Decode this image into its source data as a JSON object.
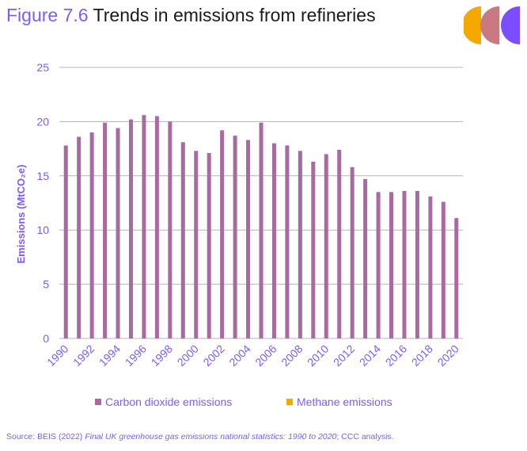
{
  "title": {
    "figure": "Figure 7.6",
    "text": "Trends in emissions from refineries"
  },
  "source": {
    "prefix": "Source: BEIS (2022) ",
    "italic": "Final UK greenhouse gas emissions national statistics: 1990 to 2020",
    "suffix": "; CCC analysis."
  },
  "logo": {
    "colors": [
      "#f5a800",
      "#c87a80",
      "#7c4dff"
    ]
  },
  "colors": {
    "bar": "#a86aa0",
    "methane": "#f5a800",
    "axis_text": "#7c5cff",
    "grid": "#b5b5b5"
  },
  "chart_data": {
    "type": "bar",
    "ylabel": "Emissions (MtCO₂e)",
    "ylim": [
      0,
      25
    ],
    "yticks": [
      0,
      5,
      10,
      15,
      20,
      25
    ],
    "grid": true,
    "legend_position": "bottom",
    "categories": [
      "1990",
      "1991",
      "1992",
      "1993",
      "1994",
      "1995",
      "1996",
      "1997",
      "1998",
      "1999",
      "2000",
      "2001",
      "2002",
      "2003",
      "2004",
      "2005",
      "2006",
      "2007",
      "2008",
      "2009",
      "2010",
      "2011",
      "2012",
      "2013",
      "2014",
      "2015",
      "2016",
      "2017",
      "2018",
      "2019",
      "2020"
    ],
    "xtick_labels": [
      "1990",
      "1992",
      "1994",
      "1996",
      "1998",
      "2000",
      "2002",
      "2004",
      "2006",
      "2008",
      "2010",
      "2012",
      "2014",
      "2016",
      "2018",
      "2020"
    ],
    "series": [
      {
        "name": "Carbon dioxide emissions",
        "values": [
          17.8,
          18.6,
          19.0,
          19.9,
          19.4,
          20.2,
          20.6,
          20.5,
          20.0,
          18.1,
          17.3,
          17.1,
          19.2,
          18.7,
          18.3,
          19.9,
          18.0,
          17.8,
          17.3,
          16.3,
          17.0,
          17.4,
          15.8,
          14.7,
          13.5,
          13.5,
          13.6,
          13.6,
          13.1,
          12.6,
          11.1
        ]
      },
      {
        "name": "Methane emissions",
        "values": [
          0,
          0,
          0,
          0,
          0,
          0,
          0,
          0,
          0,
          0,
          0,
          0,
          0,
          0,
          0,
          0,
          0,
          0,
          0,
          0,
          0,
          0,
          0,
          0,
          0,
          0,
          0,
          0,
          0,
          0,
          0
        ]
      }
    ]
  }
}
